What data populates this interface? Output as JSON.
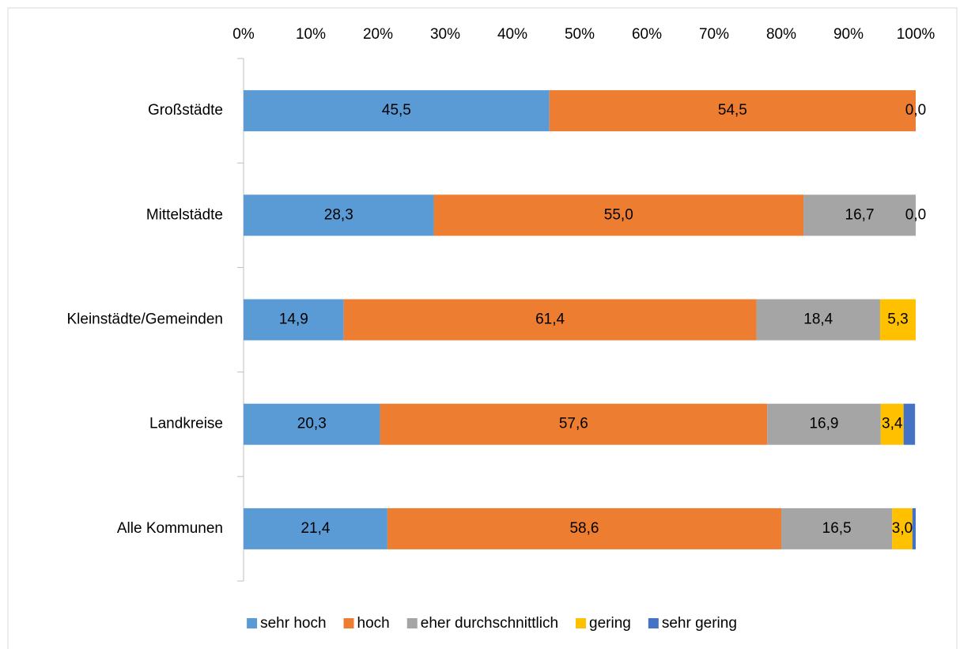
{
  "chart_data": {
    "type": "stacked_bar_horizontal",
    "categories": [
      "Großstädte",
      "Mittelstädte",
      "Kleinstädte/Gemeinden",
      "Landkreise",
      "Alle Kommunen"
    ],
    "series": [
      {
        "name": "sehr hoch",
        "color": "#5b9bd5",
        "values": [
          45.5,
          28.3,
          14.9,
          20.3,
          21.4
        ],
        "value_labels": [
          "45,5",
          "28,3",
          "14,9",
          "20,3",
          "21,4"
        ]
      },
      {
        "name": "hoch",
        "color": "#ed7d31",
        "values": [
          54.5,
          55.0,
          61.4,
          57.6,
          58.6
        ],
        "value_labels": [
          "54,5",
          "55,0",
          "61,4",
          "57,6",
          "58,6"
        ]
      },
      {
        "name": "eher durchschnittlich",
        "color": "#a5a5a5",
        "values": [
          0.0,
          16.7,
          18.4,
          16.9,
          16.5
        ],
        "value_labels": [
          "0,0",
          "16,7",
          "18,4",
          "16,9",
          "16,5"
        ]
      },
      {
        "name": "gering",
        "color": "#ffc000",
        "values": [
          null,
          0.0,
          5.3,
          3.4,
          3.0
        ],
        "value_labels": [
          null,
          "0,0",
          "5,3",
          "3,4",
          "3,0"
        ]
      },
      {
        "name": "sehr gering",
        "color": "#4472c4",
        "values": [
          null,
          null,
          null,
          1.7,
          0.5
        ],
        "value_labels": [
          null,
          null,
          null,
          null,
          null
        ]
      }
    ],
    "xlim": [
      0,
      100
    ],
    "xticks": [
      {
        "value": 0,
        "label": "0%"
      },
      {
        "value": 10,
        "label": "10%"
      },
      {
        "value": 20,
        "label": "20%"
      },
      {
        "value": 30,
        "label": "30%"
      },
      {
        "value": 40,
        "label": "40%"
      },
      {
        "value": 50,
        "label": "50%"
      },
      {
        "value": 60,
        "label": "60%"
      },
      {
        "value": 70,
        "label": "70%"
      },
      {
        "value": 80,
        "label": "80%"
      },
      {
        "value": 90,
        "label": "90%"
      },
      {
        "value": 100,
        "label": "100%"
      }
    ],
    "grid": false,
    "legend": "bottom"
  }
}
